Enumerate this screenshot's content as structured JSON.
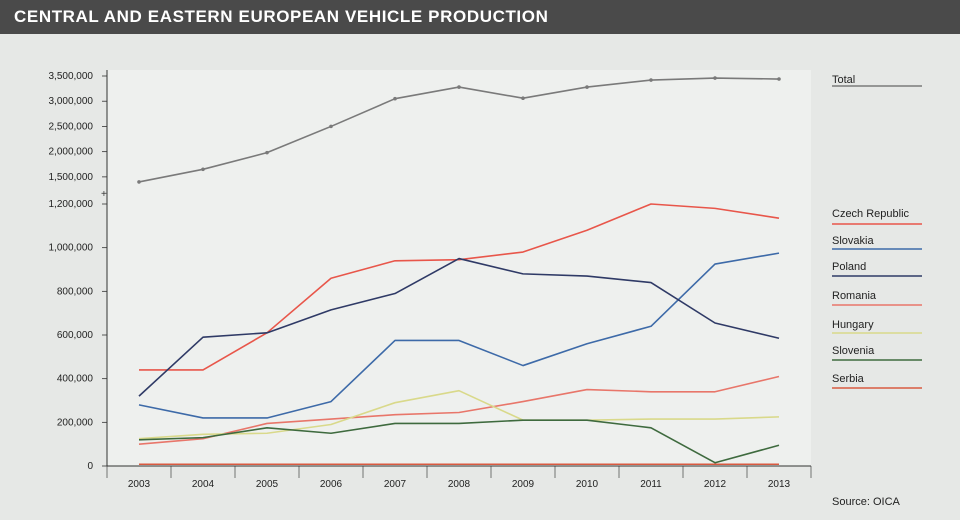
{
  "title": "CENTRAL AND EASTERN EUROPEAN VEHICLE PRODUCTION",
  "source": "Source: OICA",
  "chart_data": {
    "type": "line",
    "title": "CENTRAL AND EASTERN EUROPEAN VEHICLE PRODUCTION",
    "xlabel": "",
    "ylabel": "",
    "categories": [
      "2003",
      "2004",
      "2005",
      "2006",
      "2007",
      "2008",
      "2009",
      "2010",
      "2011",
      "2012",
      "2013"
    ],
    "y_ticks": [
      {
        "value": 0,
        "label": "0"
      },
      {
        "value": 200000,
        "label": "200,000"
      },
      {
        "value": 400000,
        "label": "400,000"
      },
      {
        "value": 600000,
        "label": "600,000"
      },
      {
        "value": 800000,
        "label": "800,000"
      },
      {
        "value": 1000000,
        "label": "1,000,000"
      },
      {
        "value": 1200000,
        "label": "1,200,000"
      },
      {
        "value": 1500000,
        "label": "1,500,000"
      },
      {
        "value": 2000000,
        "label": "2,000,000"
      },
      {
        "value": 2500000,
        "label": "2,500,000"
      },
      {
        "value": 3000000,
        "label": "3,000,000"
      },
      {
        "value": 3500000,
        "label": "3,500,000"
      }
    ],
    "series": [
      {
        "name": "Total",
        "color": "#7a7a7a",
        "marker": true,
        "values": [
          1400000,
          1650000,
          1980000,
          2500000,
          3050000,
          3280000,
          3060000,
          3280000,
          3420000,
          3460000,
          3440000
        ]
      },
      {
        "name": "Czech Republic",
        "color": "#e8564a",
        "values": [
          440000,
          440000,
          610000,
          860000,
          940000,
          945000,
          980000,
          1080000,
          1200000,
          1180000,
          1135000
        ]
      },
      {
        "name": "Slovakia",
        "color": "#3d6aa8",
        "values": [
          280000,
          220000,
          220000,
          295000,
          575000,
          575000,
          460000,
          560000,
          640000,
          925000,
          975000
        ]
      },
      {
        "name": "Poland",
        "color": "#2f3a66",
        "values": [
          320000,
          590000,
          610000,
          715000,
          790000,
          950000,
          880000,
          870000,
          840000,
          655000,
          585000
        ]
      },
      {
        "name": "Romania",
        "color": "#e8766a",
        "values": [
          100000,
          125000,
          195000,
          215000,
          235000,
          245000,
          295000,
          350000,
          340000,
          340000,
          410000
        ]
      },
      {
        "name": "Hungary",
        "color": "#d9d98a",
        "values": [
          125000,
          145000,
          150000,
          190000,
          290000,
          345000,
          210000,
          210000,
          215000,
          215000,
          225000
        ]
      },
      {
        "name": "Slovenia",
        "color": "#3e6a3e",
        "values": [
          120000,
          130000,
          175000,
          150000,
          195000,
          195000,
          210000,
          210000,
          175000,
          15000,
          95000
        ]
      },
      {
        "name": "Serbia",
        "color": "#d95a40",
        "values": [
          8000,
          8000,
          8000,
          8000,
          8000,
          8000,
          8000,
          8000,
          8000,
          8000,
          8000
        ]
      }
    ]
  }
}
